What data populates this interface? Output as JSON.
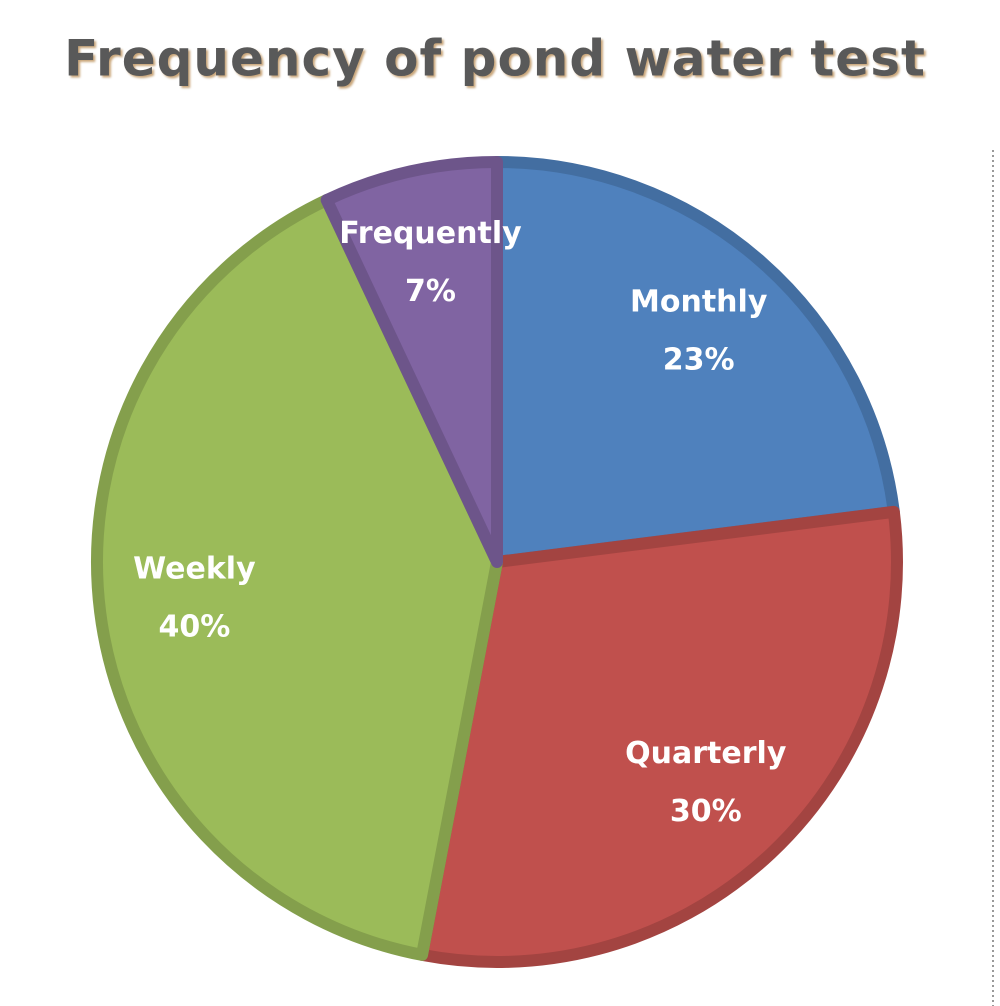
{
  "chart_data": {
    "type": "pie",
    "title": "Frequency of pond water test",
    "categories": [
      "Monthly",
      "Quarterly",
      "Weekly",
      "Frequently"
    ],
    "values": [
      23,
      30,
      40,
      7
    ],
    "value_labels": [
      "23%",
      "30%",
      "40%",
      "7%"
    ],
    "colors": [
      "#4f81bd",
      "#c0504d",
      "#9bbb59",
      "#8064a2"
    ]
  }
}
